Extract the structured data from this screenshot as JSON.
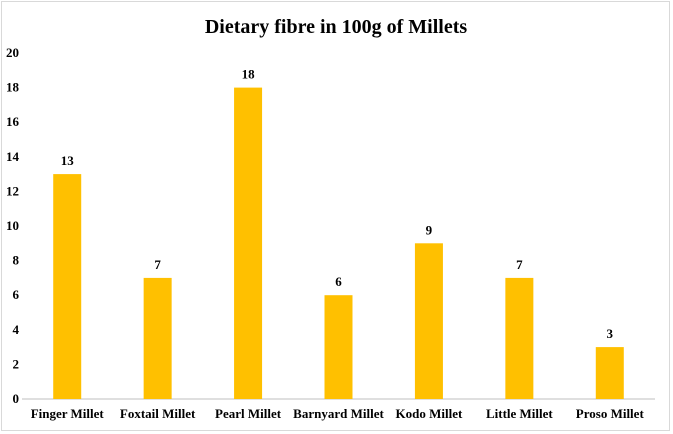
{
  "chart_data": {
    "type": "bar",
    "title": "Dietary fibre in 100g of Millets",
    "categories": [
      "Finger Millet",
      "Foxtail Millet",
      "Pearl Millet",
      "Barnyard Millet",
      "Kodo Millet",
      "Little Millet",
      "Proso Millet"
    ],
    "values": [
      13,
      7,
      18,
      6,
      9,
      7,
      3
    ],
    "ylim": [
      0,
      20
    ],
    "yticks": [
      0,
      2,
      4,
      6,
      8,
      10,
      12,
      14,
      16,
      18,
      20
    ],
    "grid": false,
    "legend": "none",
    "data_labels": true,
    "bar_color": "#FFC000",
    "axis_color": "#bfbfbf"
  }
}
